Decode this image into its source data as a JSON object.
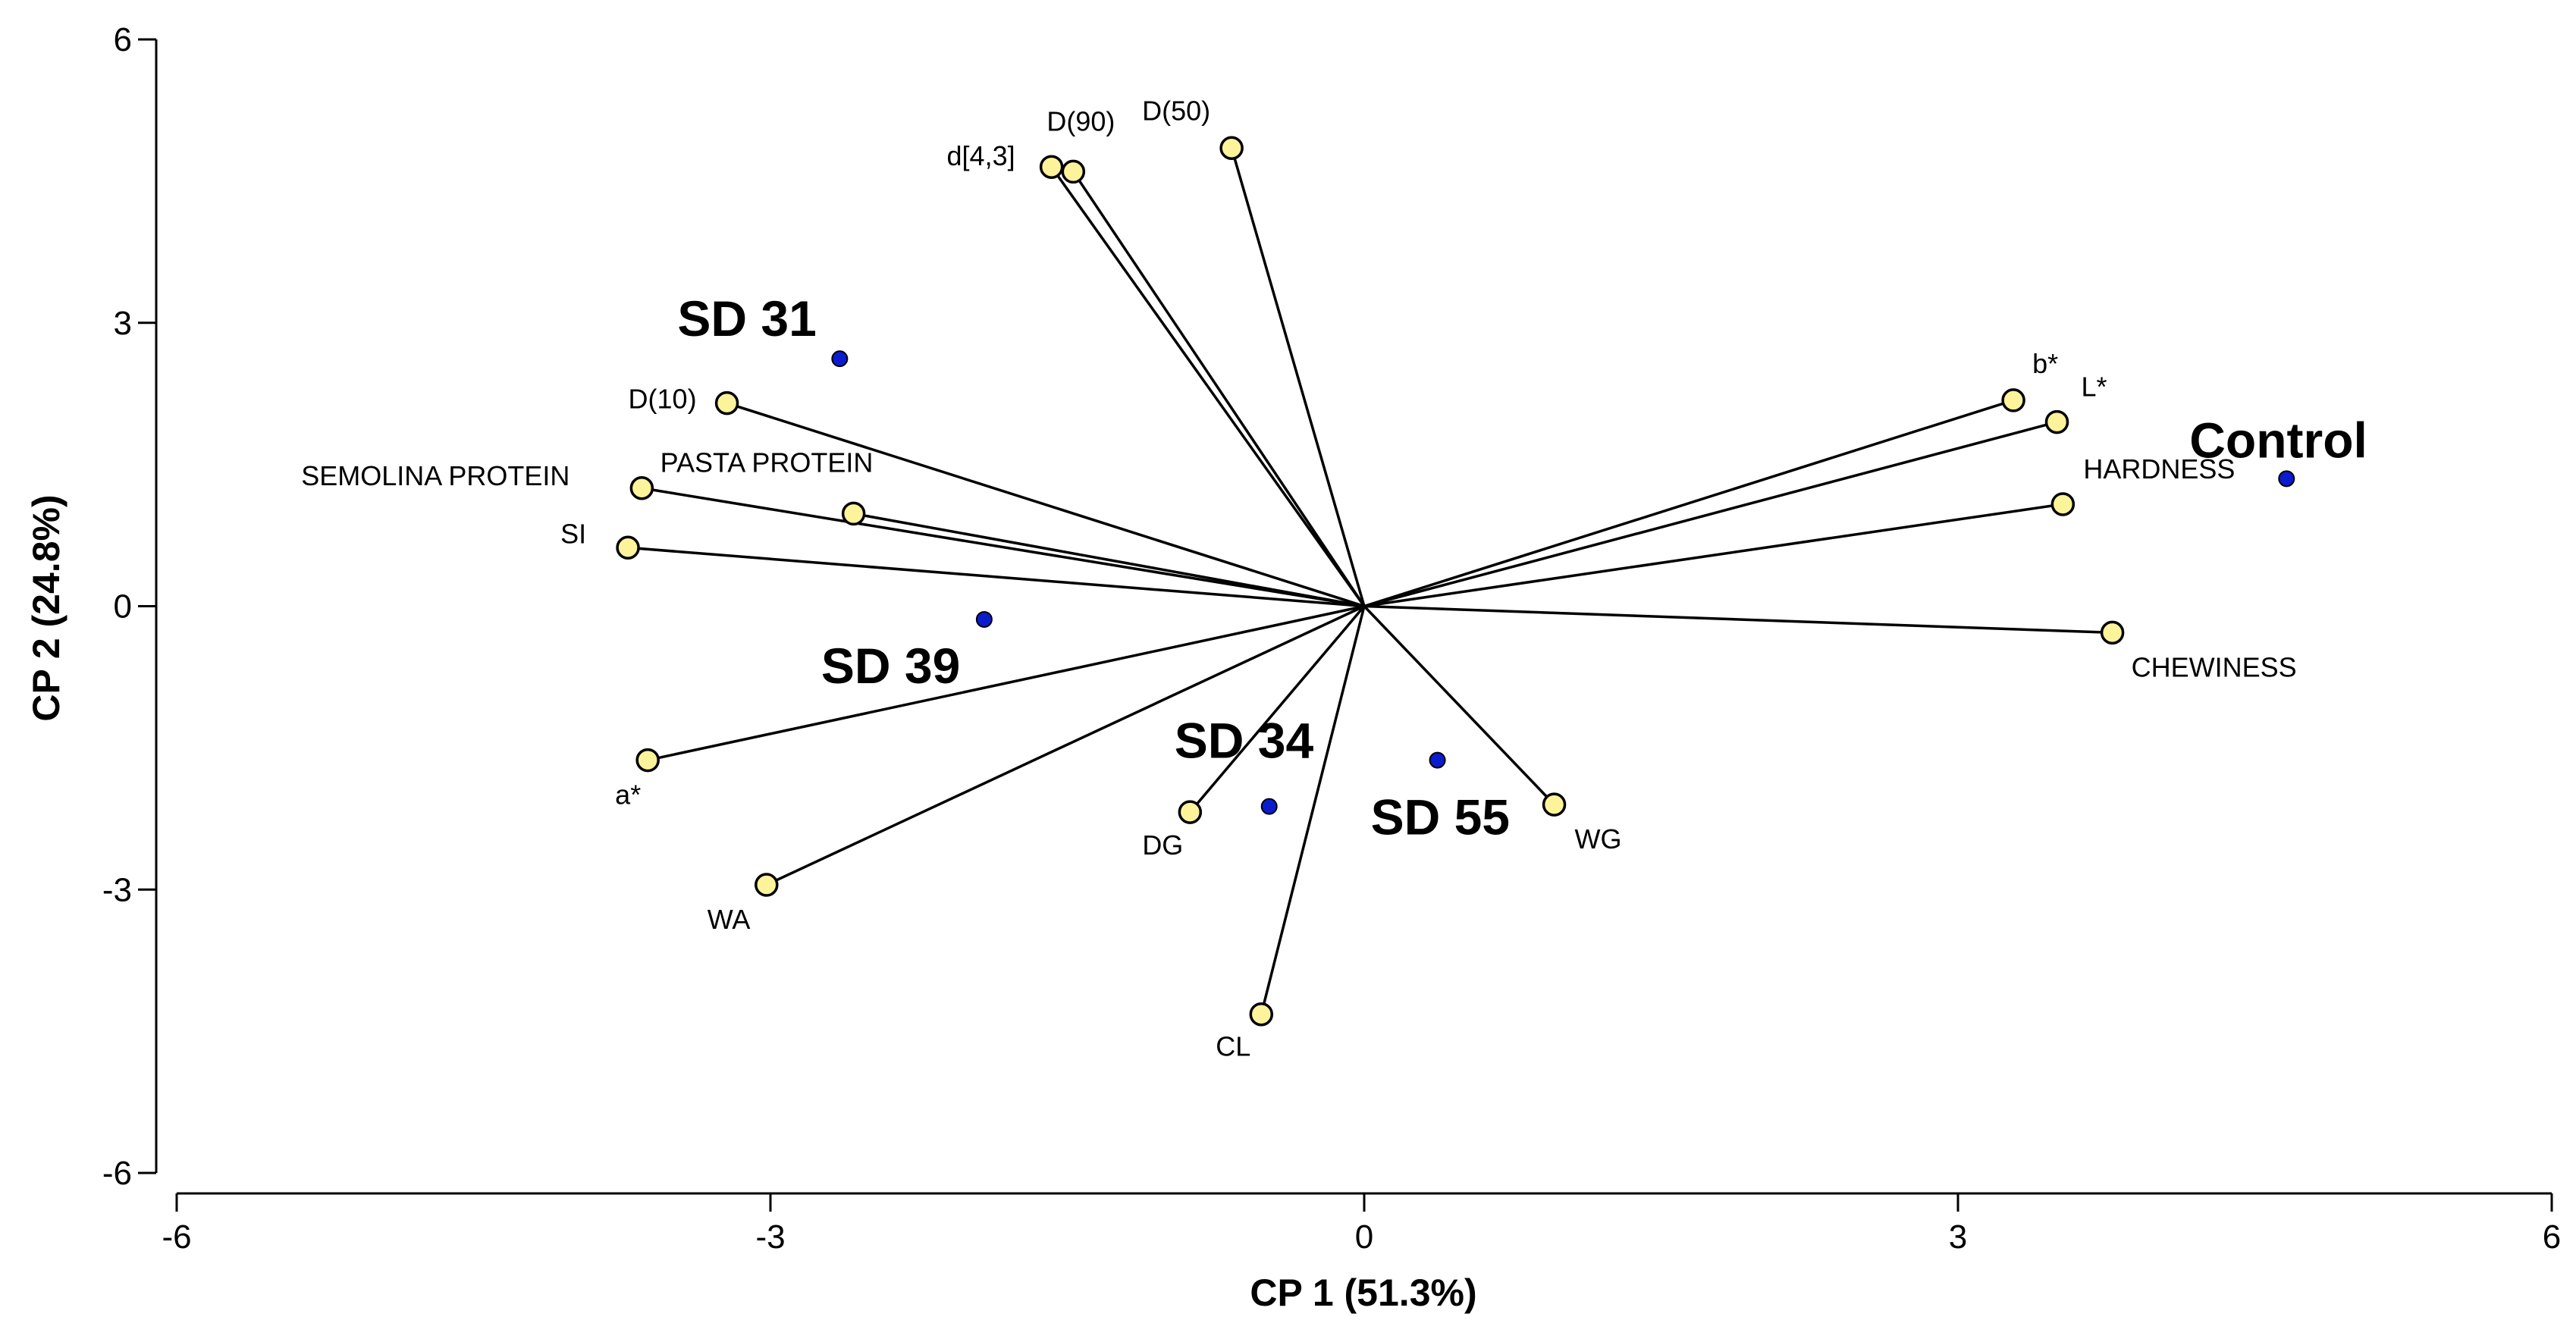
{
  "chart_data": {
    "type": "scatter",
    "subtype": "pca-biplot",
    "title": "",
    "xlabel": "CP 1 (51.3%)",
    "ylabel": "CP 2 (24.8%)",
    "xlim": [
      -6,
      6
    ],
    "ylim": [
      -6,
      6
    ],
    "xticks": [
      -6,
      -3,
      0,
      3,
      6
    ],
    "yticks": [
      -6,
      -3,
      0,
      3,
      6
    ],
    "xtick_labels": [
      "-6",
      "-3",
      "0",
      "3",
      "6"
    ],
    "ytick_labels": [
      "-6",
      "-3",
      "0",
      "3",
      "6"
    ],
    "grid": false,
    "legend": "none",
    "colors": {
      "axis": "#000000",
      "vector": "#000000",
      "variable_fill": "#fdf39b",
      "variable_stroke": "#000000",
      "sample_fill": "#0b1ccf",
      "sample_stroke": "#000000"
    },
    "variables": [
      {
        "name": "d[4,3]",
        "x": -1.58,
        "y": 4.65
      },
      {
        "name": "D(90)",
        "x": -1.47,
        "y": 4.6
      },
      {
        "name": "D(50)",
        "x": -0.67,
        "y": 4.85
      },
      {
        "name": "D(10)",
        "x": -3.22,
        "y": 2.15
      },
      {
        "name": "PASTA PROTEIN",
        "x": -2.58,
        "y": 0.98
      },
      {
        "name": "SEMOLINA PROTEIN",
        "x": -3.65,
        "y": 1.25
      },
      {
        "name": "SI",
        "x": -3.72,
        "y": 0.62
      },
      {
        "name": "a*",
        "x": -3.62,
        "y": -1.63
      },
      {
        "name": "WA",
        "x": -3.02,
        "y": -2.95
      },
      {
        "name": "DG",
        "x": -0.88,
        "y": -2.18
      },
      {
        "name": "CL",
        "x": -0.52,
        "y": -4.32
      },
      {
        "name": "WG",
        "x": 0.96,
        "y": -2.1
      },
      {
        "name": "CHEWINESS",
        "x": 3.78,
        "y": -0.28
      },
      {
        "name": "HARDNESS",
        "x": 3.53,
        "y": 1.08
      },
      {
        "name": "L*",
        "x": 3.5,
        "y": 1.95
      },
      {
        "name": "b*",
        "x": 3.28,
        "y": 2.18
      }
    ],
    "samples": [
      {
        "name": "SD 31",
        "x": -2.65,
        "y": 2.62
      },
      {
        "name": "SD 39",
        "x": -1.92,
        "y": -0.14
      },
      {
        "name": "SD 34",
        "x": -0.48,
        "y": -2.12
      },
      {
        "name": "SD 55",
        "x": 0.37,
        "y": -1.63
      },
      {
        "name": "Control",
        "x": 4.66,
        "y": 1.35
      }
    ]
  }
}
